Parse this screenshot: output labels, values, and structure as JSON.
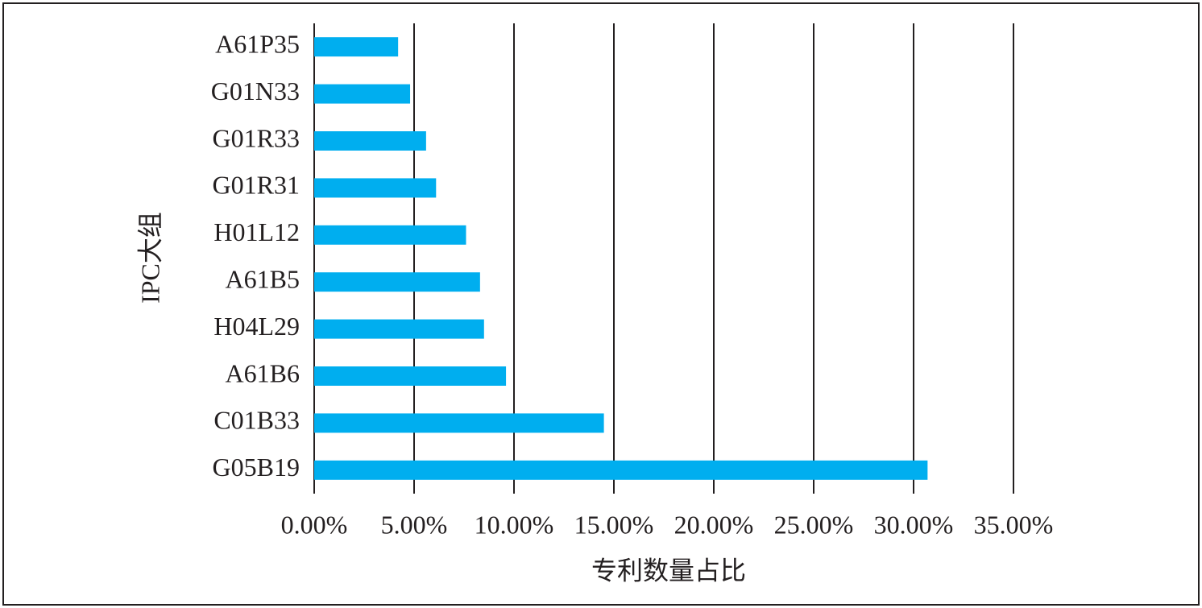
{
  "chart_data": {
    "type": "hbar",
    "categories": [
      "A61P35",
      "G01N33",
      "G01R33",
      "G01R31",
      "H01L12",
      "A61B5",
      "H04L29",
      "A61B6",
      "C01B33",
      "G05B19"
    ],
    "values": [
      4.2,
      4.8,
      5.6,
      6.1,
      7.6,
      8.3,
      8.5,
      9.6,
      14.5,
      30.7
    ],
    "color": "#00aeef",
    "xlim": [
      0,
      35
    ],
    "xticks": [
      {
        "value": 0,
        "label": "0.00%"
      },
      {
        "value": 5,
        "label": "5.00%"
      },
      {
        "value": 10,
        "label": "10.00%"
      },
      {
        "value": 15,
        "label": "15.00%"
      },
      {
        "value": 20,
        "label": "20.00%"
      },
      {
        "value": 25,
        "label": "25.00%"
      },
      {
        "value": 30,
        "label": "30.00%"
      },
      {
        "value": 35,
        "label": "35.00%"
      }
    ],
    "grid": true,
    "x_label": "专利数量占比",
    "y_label": "IPC大组"
  }
}
